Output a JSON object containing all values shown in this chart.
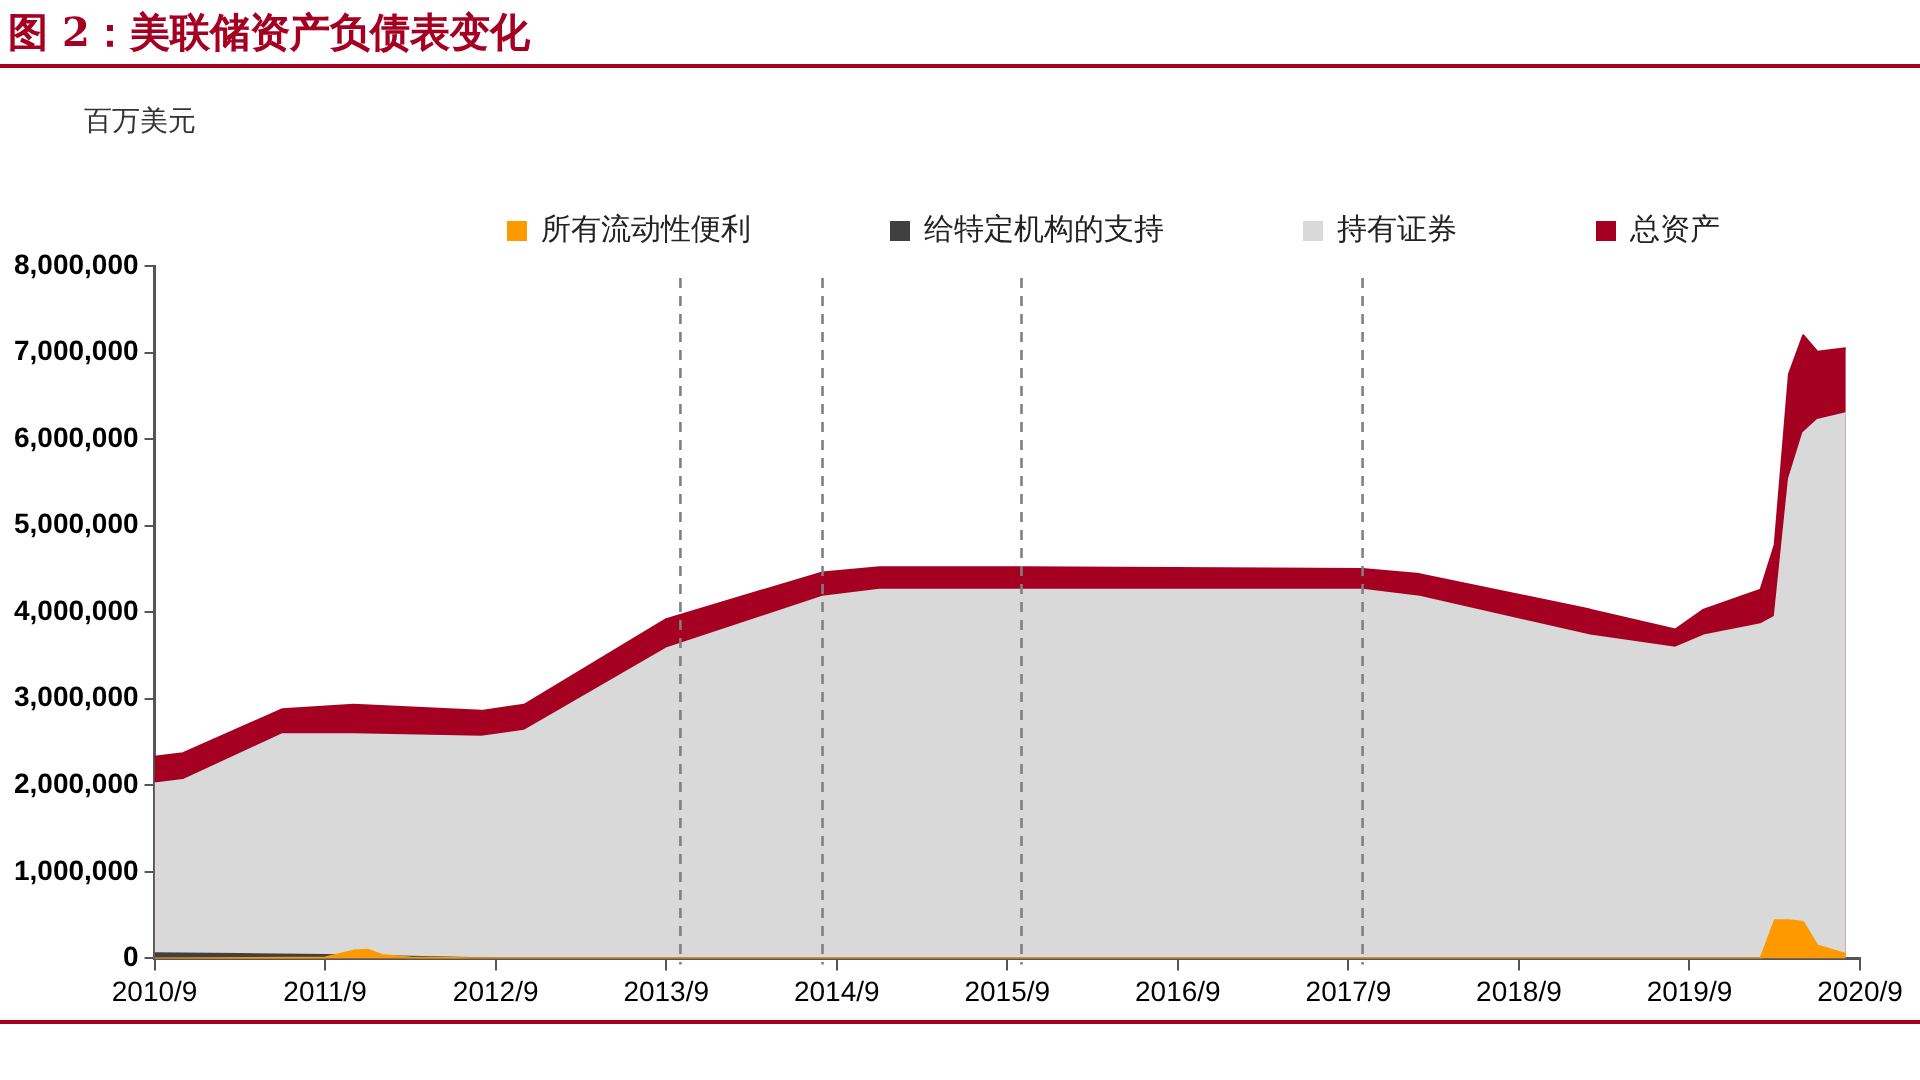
{
  "chart_data": {
    "type": "area",
    "title": "图 2：美联储资产负债表变化",
    "ylabel": "百万美元",
    "series": [
      {
        "name": "总资产",
        "color": "#a50021",
        "x": [
          "2010-09",
          "2010-11",
          "2011-06",
          "2011-11",
          "2012-08",
          "2012-11",
          "2013-09",
          "2014-08",
          "2014-12",
          "2015-10",
          "2017-10",
          "2018-02",
          "2019-02",
          "2019-08",
          "2019-10",
          "2020-02",
          "2020-03",
          "2020-04",
          "2020-05",
          "2020-06",
          "2020-08"
        ],
        "values": [
          2330000,
          2370000,
          2880000,
          2930000,
          2860000,
          2930000,
          3920000,
          4460000,
          4520000,
          4520000,
          4500000,
          4440000,
          4030000,
          3800000,
          4030000,
          4260000,
          4780000,
          6750000,
          7200000,
          7010000,
          7050000
        ]
      },
      {
        "name": "持有证券",
        "color": "#d9d9d9",
        "x": [
          "2010-09",
          "2010-11",
          "2011-06",
          "2011-11",
          "2012-08",
          "2012-11",
          "2013-09",
          "2014-08",
          "2014-12",
          "2015-10",
          "2017-10",
          "2018-02",
          "2019-02",
          "2019-08",
          "2019-10",
          "2020-02",
          "2020-03",
          "2020-04",
          "2020-05",
          "2020-06",
          "2020-08"
        ],
        "values": [
          2020000,
          2060000,
          2590000,
          2590000,
          2560000,
          2630000,
          3580000,
          4180000,
          4260000,
          4260000,
          4260000,
          4180000,
          3730000,
          3590000,
          3730000,
          3860000,
          3950000,
          5540000,
          6070000,
          6220000,
          6300000
        ]
      },
      {
        "name": "给特定机构的支持",
        "color": "#404040",
        "x": [
          "2010-09",
          "2011-03",
          "2011-09",
          "2012-03",
          "2012-09",
          "2020-08"
        ],
        "values": [
          60000,
          50000,
          40000,
          20000,
          0,
          0
        ]
      },
      {
        "name": "所有流动性便利",
        "color": "#ff9900",
        "x": [
          "2010-09",
          "2011-09",
          "2011-11",
          "2011-12",
          "2012-01",
          "2012-03",
          "2012-09",
          "2020-02",
          "2020-03",
          "2020-04",
          "2020-05",
          "2020-06",
          "2020-08"
        ],
        "values": [
          0,
          10000,
          90000,
          100000,
          40000,
          10000,
          0,
          0,
          440000,
          440000,
          420000,
          150000,
          50000
        ]
      }
    ],
    "xlim": [
      "2010-09",
      "2020-09"
    ],
    "xticks": [
      {
        "value": "2010-09",
        "label": "2010/9"
      },
      {
        "value": "2011-09",
        "label": "2011/9"
      },
      {
        "value": "2012-09",
        "label": "2012/9"
      },
      {
        "value": "2013-09",
        "label": "2013/9"
      },
      {
        "value": "2014-09",
        "label": "2014/9"
      },
      {
        "value": "2015-09",
        "label": "2015/9"
      },
      {
        "value": "2016-09",
        "label": "2016/9"
      },
      {
        "value": "2017-09",
        "label": "2017/9"
      },
      {
        "value": "2018-09",
        "label": "2018/9"
      },
      {
        "value": "2019-09",
        "label": "2019/9"
      },
      {
        "value": "2020-09",
        "label": "2020/9"
      }
    ],
    "ylim": [
      0,
      8000000
    ],
    "yticks": [
      {
        "value": 0,
        "label": "0"
      },
      {
        "value": 1000000,
        "label": "1,000,000"
      },
      {
        "value": 2000000,
        "label": "2,000,000"
      },
      {
        "value": 3000000,
        "label": "3,000,000"
      },
      {
        "value": 4000000,
        "label": "4,000,000"
      },
      {
        "value": 5000000,
        "label": "5,000,000"
      },
      {
        "value": 6000000,
        "label": "6,000,000"
      },
      {
        "value": 7000000,
        "label": "7,000,000"
      },
      {
        "value": 8000000,
        "label": "8,000,000"
      }
    ],
    "ref_lines": [
      {
        "axis": "x",
        "value": "2013-10",
        "color": "#808080",
        "line_style": "dashed"
      },
      {
        "axis": "x",
        "value": "2014-08",
        "color": "#808080",
        "line_style": "dashed"
      },
      {
        "axis": "x",
        "value": "2015-10",
        "color": "#808080",
        "line_style": "dashed"
      },
      {
        "axis": "x",
        "value": "2017-10",
        "color": "#808080",
        "line_style": "dashed"
      }
    ],
    "grid": false,
    "legend": "top",
    "marker": "none"
  }
}
